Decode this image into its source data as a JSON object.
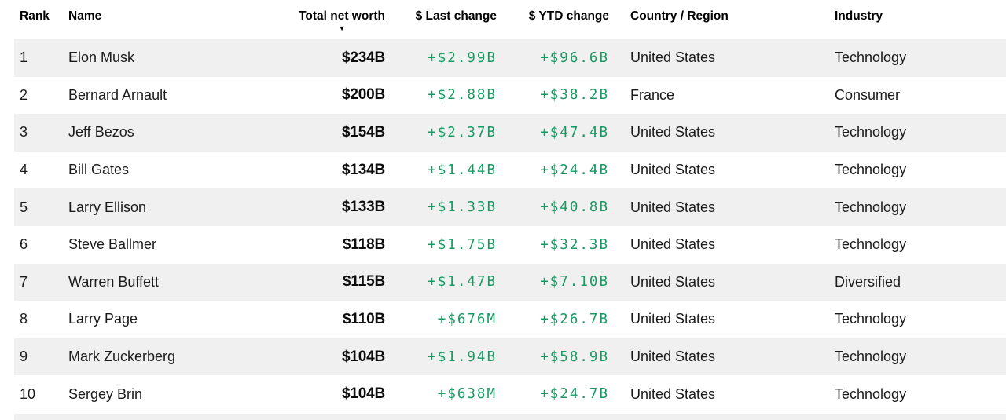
{
  "colors": {
    "positive_change": "#179A62",
    "row_stripe": "#F0F0F0",
    "header_text": "#000000",
    "body_text": "#1B1B1B"
  },
  "table": {
    "columns": [
      {
        "key": "rank",
        "label": "Rank"
      },
      {
        "key": "name",
        "label": "Name"
      },
      {
        "key": "net_worth",
        "label": "Total net worth"
      },
      {
        "key": "last_change",
        "label": "$ Last change"
      },
      {
        "key": "ytd_change",
        "label": "$ YTD change"
      },
      {
        "key": "country",
        "label": "Country / Region"
      },
      {
        "key": "industry",
        "label": "Industry"
      }
    ],
    "sort": {
      "column": "Total net worth",
      "direction": "descending",
      "icon": "▼"
    },
    "rows": [
      {
        "rank": "1",
        "name": "Elon Musk",
        "net_worth": "$234B",
        "last_change": "+$2.99B",
        "ytd_change": "+$96.6B",
        "country": "United States",
        "industry": "Technology"
      },
      {
        "rank": "2",
        "name": "Bernard Arnault",
        "net_worth": "$200B",
        "last_change": "+$2.88B",
        "ytd_change": "+$38.2B",
        "country": "France",
        "industry": "Consumer"
      },
      {
        "rank": "3",
        "name": "Jeff Bezos",
        "net_worth": "$154B",
        "last_change": "+$2.37B",
        "ytd_change": "+$47.4B",
        "country": "United States",
        "industry": "Technology"
      },
      {
        "rank": "4",
        "name": "Bill Gates",
        "net_worth": "$134B",
        "last_change": "+$1.44B",
        "ytd_change": "+$24.4B",
        "country": "United States",
        "industry": "Technology"
      },
      {
        "rank": "5",
        "name": "Larry Ellison",
        "net_worth": "$133B",
        "last_change": "+$1.33B",
        "ytd_change": "+$40.8B",
        "country": "United States",
        "industry": "Technology"
      },
      {
        "rank": "6",
        "name": "Steve Ballmer",
        "net_worth": "$118B",
        "last_change": "+$1.75B",
        "ytd_change": "+$32.3B",
        "country": "United States",
        "industry": "Technology"
      },
      {
        "rank": "7",
        "name": "Warren Buffett",
        "net_worth": "$115B",
        "last_change": "+$1.47B",
        "ytd_change": "+$7.10B",
        "country": "United States",
        "industry": "Diversified"
      },
      {
        "rank": "8",
        "name": "Larry Page",
        "net_worth": "$110B",
        "last_change": "+$676M",
        "ytd_change": "+$26.7B",
        "country": "United States",
        "industry": "Technology"
      },
      {
        "rank": "9",
        "name": "Mark Zuckerberg",
        "net_worth": "$104B",
        "last_change": "+$1.94B",
        "ytd_change": "+$58.9B",
        "country": "United States",
        "industry": "Technology"
      },
      {
        "rank": "10",
        "name": "Sergey Brin",
        "net_worth": "$104B",
        "last_change": "+$638M",
        "ytd_change": "+$24.7B",
        "country": "United States",
        "industry": "Technology"
      }
    ]
  }
}
